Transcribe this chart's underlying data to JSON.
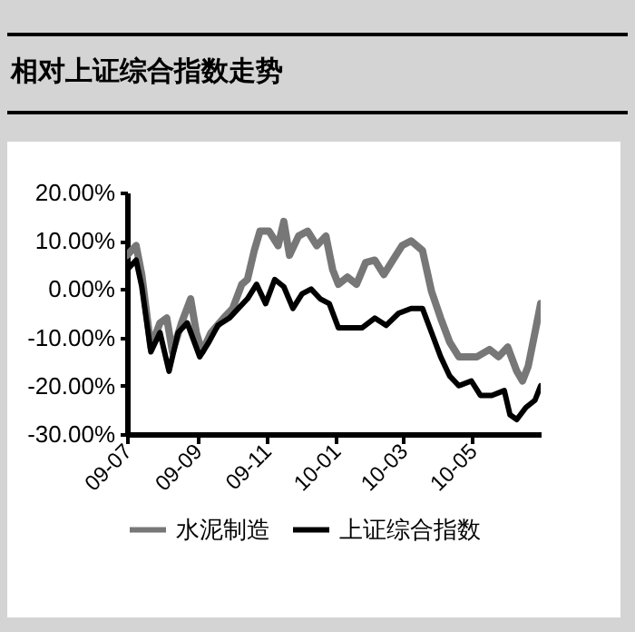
{
  "chart_data": {
    "type": "line",
    "title": "相对上证综合指数走势",
    "ylim": [
      -30,
      20
    ],
    "yticks": [
      {
        "value": -30,
        "label": "-30.00%"
      },
      {
        "value": -20,
        "label": "-20.00%"
      },
      {
        "value": -10,
        "label": "-10.00%"
      },
      {
        "value": 0,
        "label": "0.00%"
      },
      {
        "value": 10,
        "label": "10.00%"
      },
      {
        "value": 20,
        "label": "20.00%"
      }
    ],
    "xlim": [
      "2009-07-01",
      "2010-06-30"
    ],
    "xticks": [
      {
        "value": "2009-07-01",
        "label": "09-07"
      },
      {
        "value": "2009-09-01",
        "label": "09-09"
      },
      {
        "value": "2009-11-01",
        "label": "09-11"
      },
      {
        "value": "2010-01-01",
        "label": "10-01"
      },
      {
        "value": "2010-03-01",
        "label": "10-03"
      },
      {
        "value": "2010-05-01",
        "label": "10-05"
      }
    ],
    "grid": false,
    "legend": "bottom",
    "line_style": "solid",
    "series": [
      {
        "name": "水泥制造",
        "color": "#777777",
        "x": [
          "2009-07-01",
          "2009-07-09",
          "2009-07-14",
          "2009-07-22",
          "2009-07-30",
          "2009-08-05",
          "2009-08-10",
          "2009-08-18",
          "2009-08-26",
          "2009-08-31",
          "2009-09-05",
          "2009-09-13",
          "2009-09-24",
          "2009-10-02",
          "2009-10-10",
          "2009-10-15",
          "2009-10-21",
          "2009-10-26",
          "2009-11-03",
          "2009-11-11",
          "2009-11-16",
          "2009-11-21",
          "2009-11-29",
          "2009-12-07",
          "2009-12-15",
          "2009-12-23",
          "2009-12-29",
          "2010-01-03",
          "2010-01-11",
          "2010-01-19",
          "2010-01-27",
          "2010-02-04",
          "2010-02-12",
          "2010-02-20",
          "2010-02-28",
          "2010-03-08",
          "2010-03-18",
          "2010-03-26",
          "2010-04-03",
          "2010-04-11",
          "2010-04-19",
          "2010-04-27",
          "2010-05-05",
          "2010-05-16",
          "2010-05-24",
          "2010-06-01",
          "2010-06-09",
          "2010-06-14",
          "2010-06-19",
          "2010-06-25",
          "2010-06-30"
        ],
        "values": [
          7,
          9,
          3,
          -12,
          -7,
          -6,
          -13,
          -7,
          -2,
          -9,
          -13,
          -9,
          -6,
          -4,
          1,
          2,
          8,
          12,
          12,
          9,
          14,
          7,
          11,
          12,
          9,
          11,
          4,
          1,
          2.5,
          1,
          5.5,
          6,
          3,
          6,
          9,
          10,
          8,
          -0.5,
          -6,
          -11,
          -14,
          -14,
          -14,
          -12.5,
          -14,
          -12,
          -17,
          -19,
          -16,
          -9,
          -3
        ]
      },
      {
        "name": "上证综合指数",
        "color": "#000000",
        "x": [
          "2009-07-01",
          "2009-07-09",
          "2009-07-14",
          "2009-07-22",
          "2009-07-30",
          "2009-08-07",
          "2009-08-15",
          "2009-08-23",
          "2009-09-03",
          "2009-09-11",
          "2009-09-19",
          "2009-09-29",
          "2009-10-07",
          "2009-10-15",
          "2009-10-23",
          "2009-10-31",
          "2009-11-08",
          "2009-11-16",
          "2009-11-24",
          "2009-12-02",
          "2009-12-10",
          "2009-12-18",
          "2009-12-26",
          "2010-01-03",
          "2010-01-14",
          "2010-01-24",
          "2010-02-04",
          "2010-02-14",
          "2010-02-25",
          "2010-03-08",
          "2010-03-18",
          "2010-03-26",
          "2010-04-03",
          "2010-04-11",
          "2010-04-19",
          "2010-04-30",
          "2010-05-08",
          "2010-05-18",
          "2010-05-29",
          "2010-06-03",
          "2010-06-09",
          "2010-06-17",
          "2010-06-25",
          "2010-06-30"
        ],
        "values": [
          4,
          6,
          0.5,
          -13,
          -9,
          -17,
          -9,
          -7,
          -14,
          -11,
          -7.5,
          -6,
          -4,
          -2,
          1,
          -3,
          2,
          0.5,
          -4,
          -1,
          0,
          -2,
          -3,
          -8,
          -8,
          -8,
          -6,
          -7.5,
          -5,
          -4,
          -4,
          -9,
          -14,
          -18,
          -20,
          -19,
          -22,
          -22,
          -21,
          -26,
          -27,
          -24.5,
          -23,
          -20
        ]
      }
    ]
  }
}
